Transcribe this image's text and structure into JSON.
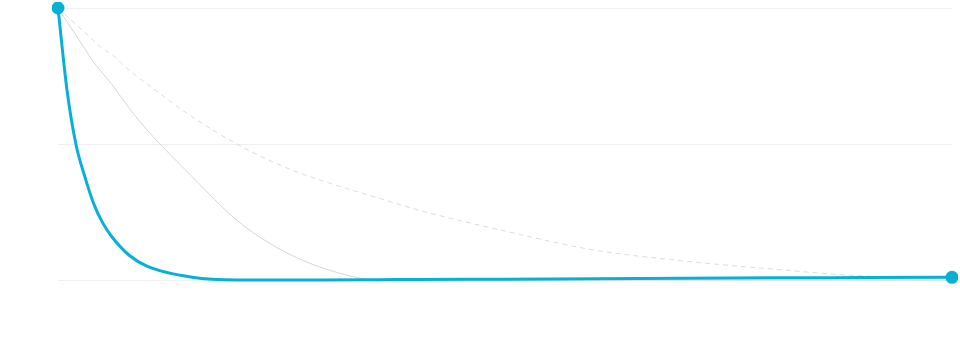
{
  "chart_data": {
    "type": "line",
    "x": [
      0,
      1,
      2,
      3,
      4,
      5,
      6,
      8,
      10,
      15,
      20,
      25,
      30,
      36,
      40,
      50,
      60,
      70,
      80,
      90,
      100
    ],
    "series": [
      {
        "color": "#dcdcdc",
        "line_style": "dashed",
        "marker": "none",
        "values": [
          1,
          0.97,
          0.94,
          0.91,
          0.88,
          0.85,
          0.83,
          0.77,
          0.72,
          0.6,
          0.5,
          0.42,
          0.36,
          0.3,
          0.26,
          0.18,
          0.11,
          0.07,
          0.04,
          0.015,
          0.01
        ]
      },
      {
        "color": "#d6d6d6",
        "line_style": "solid",
        "marker": "none",
        "values": [
          1,
          0.95,
          0.9,
          0.85,
          0.8,
          0.76,
          0.72,
          0.63,
          0.55,
          0.38,
          0.22,
          0.11,
          0.04,
          0,
          0,
          0,
          0,
          0,
          0,
          0,
          0
        ]
      },
      {
        "color": "#06b1d5",
        "line_style": "solid",
        "marker": "endpoints",
        "values": [
          1,
          0.7,
          0.5,
          0.38,
          0.28,
          0.21,
          0.16,
          0.09,
          0.05,
          0.01,
          0,
          0,
          0,
          0.001,
          0.002,
          0.003,
          0.005,
          0.006,
          0.008,
          0.009,
          0.01
        ]
      }
    ],
    "xlim": [
      0,
      100
    ],
    "ylim": [
      0,
      1
    ],
    "yticks": [
      0,
      0.5,
      1
    ],
    "grid": true,
    "tick_labels": false
  }
}
